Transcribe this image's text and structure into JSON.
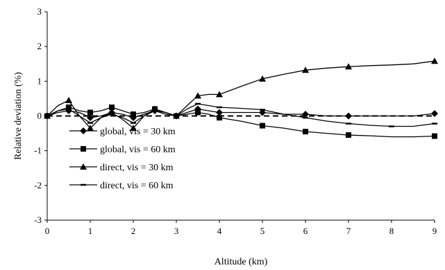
{
  "chart_data": {
    "type": "line",
    "xlabel": "Altitude (km)",
    "ylabel": "Relative deviation (%)",
    "xlim": [
      0,
      9
    ],
    "ylim": [
      -3,
      3
    ],
    "x_ticks": [
      0,
      1,
      2,
      3,
      4,
      5,
      6,
      7,
      8,
      9
    ],
    "y_ticks": [
      -3,
      -2,
      -1,
      0,
      1,
      2,
      3
    ],
    "grid": false,
    "legend_position": "bottom-left",
    "reference_line": {
      "y": 0,
      "style": "dashed"
    },
    "series": [
      {
        "name": "global, vis = 30 km",
        "marker": "diamond",
        "x": [
          0,
          0.25,
          0.5,
          0.75,
          1,
          1.25,
          1.5,
          1.75,
          2,
          2.25,
          2.5,
          2.75,
          3,
          3.25,
          3.5,
          3.75,
          4,
          4.5,
          5,
          5.5,
          6,
          6.5,
          7,
          7.5,
          8,
          8.5,
          9
        ],
        "y": [
          0,
          0.1,
          0.15,
          0.1,
          -0.05,
          0.0,
          0.1,
          0.05,
          -0.05,
          0.05,
          0.15,
          0.1,
          0,
          0.1,
          0.2,
          0.15,
          0.1,
          0.1,
          0.1,
          0.05,
          0.05,
          0.0,
          0.0,
          0.0,
          0.0,
          0.0,
          0.07
        ],
        "markers_x": [
          0,
          0.5,
          1,
          1.5,
          2,
          2.5,
          3,
          3.5,
          4,
          5,
          6,
          7,
          9
        ]
      },
      {
        "name": "global, vis = 60 km",
        "marker": "square",
        "x": [
          0,
          0.25,
          0.5,
          0.75,
          1,
          1.25,
          1.5,
          1.75,
          2,
          2.25,
          2.5,
          2.75,
          3,
          3.25,
          3.5,
          3.75,
          4,
          4.5,
          5,
          5.5,
          6,
          6.5,
          7,
          7.5,
          8,
          8.5,
          9
        ],
        "y": [
          0,
          0.15,
          0.25,
          0.15,
          0.1,
          0.15,
          0.25,
          0.15,
          0.05,
          0.1,
          0.2,
          0.1,
          0,
          0.05,
          0.1,
          0.05,
          -0.05,
          -0.15,
          -0.28,
          -0.35,
          -0.45,
          -0.5,
          -0.55,
          -0.57,
          -0.6,
          -0.6,
          -0.58
        ],
        "markers_x": [
          0,
          0.5,
          1,
          1.5,
          2,
          2.5,
          3,
          3.5,
          4,
          5,
          6,
          7,
          9
        ]
      },
      {
        "name": "direct, vis = 30 km",
        "marker": "triangle",
        "x": [
          0,
          0.25,
          0.5,
          0.75,
          1,
          1.25,
          1.5,
          1.75,
          2,
          2.25,
          2.5,
          2.75,
          3,
          3.25,
          3.5,
          3.75,
          4,
          4.5,
          5,
          5.5,
          6,
          6.5,
          7,
          7.5,
          8,
          8.5,
          9
        ],
        "y": [
          0,
          0.3,
          0.45,
          0.0,
          -0.35,
          -0.05,
          0.1,
          -0.1,
          -0.35,
          0.0,
          0.2,
          0.1,
          0,
          0.3,
          0.58,
          0.62,
          0.62,
          0.85,
          1.07,
          1.2,
          1.32,
          1.38,
          1.42,
          1.45,
          1.47,
          1.5,
          1.58
        ],
        "markers_x": [
          0,
          0.5,
          1,
          1.5,
          2,
          2.5,
          3,
          3.5,
          4,
          5,
          6,
          7,
          9
        ]
      },
      {
        "name": "direct, vis = 60 km",
        "marker": "dash",
        "x": [
          0,
          0.25,
          0.5,
          0.75,
          1,
          1.25,
          1.5,
          1.75,
          2,
          2.25,
          2.5,
          2.75,
          3,
          3.25,
          3.5,
          3.75,
          4,
          4.5,
          5,
          5.5,
          6,
          6.5,
          7,
          7.5,
          8,
          8.5,
          9
        ],
        "y": [
          0,
          0.15,
          0.2,
          0.0,
          -0.2,
          -0.05,
          0.05,
          -0.05,
          -0.2,
          0.0,
          0.15,
          0.05,
          0,
          0.2,
          0.35,
          0.3,
          0.25,
          0.22,
          0.18,
          0.05,
          -0.05,
          -0.15,
          -0.22,
          -0.27,
          -0.3,
          -0.3,
          -0.22
        ],
        "markers_x": [
          0,
          0.5,
          1,
          1.5,
          2,
          2.5,
          3,
          3.5,
          4,
          5,
          6,
          7,
          8,
          9
        ]
      }
    ]
  }
}
